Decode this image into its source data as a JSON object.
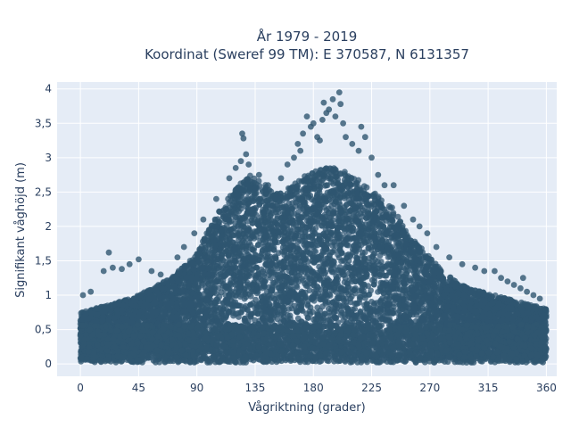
{
  "chart_data": {
    "type": "scatter",
    "title_line1": "År 1979 - 2019",
    "title_line2": "Koordinat (Sweref 99 TM): E 370587, N 6131357",
    "xlabel": "Vågriktning (grader)",
    "ylabel": "Signifikant våghöjd (m)",
    "xlim": [
      -18,
      368
    ],
    "ylim": [
      -0.18,
      4.1
    ],
    "xticks": [
      0,
      45,
      90,
      135,
      180,
      225,
      270,
      315,
      360
    ],
    "xtick_labels": [
      "0",
      "45",
      "90",
      "135",
      "180",
      "225",
      "270",
      "315",
      "360"
    ],
    "yticks": [
      0,
      0.5,
      1,
      1.5,
      2,
      2.5,
      3,
      3.5,
      4
    ],
    "ytick_labels": [
      "0",
      "0,5",
      "1",
      "1,5",
      "2",
      "2,5",
      "3",
      "3,5",
      "4"
    ],
    "grid": true,
    "colors": {
      "marker": "#2f5670",
      "plot_bg": "#e5ecf6",
      "grid": "#ffffff"
    },
    "envelope": {
      "x": [
        0,
        20,
        45,
        70,
        90,
        100,
        110,
        120,
        130,
        140,
        150,
        160,
        170,
        180,
        190,
        200,
        210,
        220,
        230,
        240,
        250,
        260,
        270,
        280,
        290,
        300,
        310,
        320,
        330,
        340,
        350,
        360
      ],
      "y": [
        0.75,
        0.85,
        1.0,
        1.25,
        1.6,
        2.0,
        2.3,
        2.55,
        2.75,
        2.65,
        2.5,
        2.55,
        2.7,
        2.8,
        2.85,
        2.85,
        2.75,
        2.6,
        2.45,
        2.3,
        2.0,
        1.75,
        1.55,
        1.35,
        1.2,
        1.1,
        1.05,
        1.0,
        0.95,
        0.9,
        0.85,
        0.8
      ]
    },
    "outliers": [
      {
        "x": 2,
        "y": 1.0
      },
      {
        "x": 8,
        "y": 1.05
      },
      {
        "x": 22,
        "y": 1.62
      },
      {
        "x": 18,
        "y": 1.35
      },
      {
        "x": 25,
        "y": 1.4
      },
      {
        "x": 32,
        "y": 1.38
      },
      {
        "x": 38,
        "y": 1.45
      },
      {
        "x": 45,
        "y": 1.52
      },
      {
        "x": 55,
        "y": 1.35
      },
      {
        "x": 62,
        "y": 1.3
      },
      {
        "x": 75,
        "y": 1.55
      },
      {
        "x": 80,
        "y": 1.7
      },
      {
        "x": 88,
        "y": 1.9
      },
      {
        "x": 95,
        "y": 2.1
      },
      {
        "x": 105,
        "y": 2.4
      },
      {
        "x": 115,
        "y": 2.7
      },
      {
        "x": 120,
        "y": 2.85
      },
      {
        "x": 124,
        "y": 2.95
      },
      {
        "x": 125,
        "y": 3.35
      },
      {
        "x": 126,
        "y": 3.28
      },
      {
        "x": 128,
        "y": 3.05
      },
      {
        "x": 130,
        "y": 2.9
      },
      {
        "x": 138,
        "y": 2.75
      },
      {
        "x": 145,
        "y": 2.6
      },
      {
        "x": 155,
        "y": 2.7
      },
      {
        "x": 160,
        "y": 2.9
      },
      {
        "x": 165,
        "y": 3.0
      },
      {
        "x": 168,
        "y": 3.2
      },
      {
        "x": 170,
        "y": 3.1
      },
      {
        "x": 172,
        "y": 3.35
      },
      {
        "x": 175,
        "y": 3.6
      },
      {
        "x": 178,
        "y": 3.45
      },
      {
        "x": 180,
        "y": 3.5
      },
      {
        "x": 183,
        "y": 3.3
      },
      {
        "x": 185,
        "y": 3.25
      },
      {
        "x": 187,
        "y": 3.55
      },
      {
        "x": 188,
        "y": 3.8
      },
      {
        "x": 190,
        "y": 3.65
      },
      {
        "x": 192,
        "y": 3.7
      },
      {
        "x": 195,
        "y": 3.85
      },
      {
        "x": 197,
        "y": 3.6
      },
      {
        "x": 200,
        "y": 3.95
      },
      {
        "x": 201,
        "y": 3.78
      },
      {
        "x": 203,
        "y": 3.5
      },
      {
        "x": 205,
        "y": 3.3
      },
      {
        "x": 210,
        "y": 3.2
      },
      {
        "x": 215,
        "y": 3.1
      },
      {
        "x": 217,
        "y": 3.45
      },
      {
        "x": 220,
        "y": 3.3
      },
      {
        "x": 225,
        "y": 3.0
      },
      {
        "x": 230,
        "y": 2.75
      },
      {
        "x": 235,
        "y": 2.6
      },
      {
        "x": 242,
        "y": 2.6
      },
      {
        "x": 250,
        "y": 2.3
      },
      {
        "x": 257,
        "y": 2.1
      },
      {
        "x": 262,
        "y": 2.0
      },
      {
        "x": 268,
        "y": 1.9
      },
      {
        "x": 275,
        "y": 1.7
      },
      {
        "x": 285,
        "y": 1.55
      },
      {
        "x": 295,
        "y": 1.45
      },
      {
        "x": 305,
        "y": 1.4
      },
      {
        "x": 312,
        "y": 1.35
      },
      {
        "x": 320,
        "y": 1.35
      },
      {
        "x": 325,
        "y": 1.25
      },
      {
        "x": 330,
        "y": 1.2
      },
      {
        "x": 335,
        "y": 1.15
      },
      {
        "x": 340,
        "y": 1.1
      },
      {
        "x": 342,
        "y": 1.25
      },
      {
        "x": 345,
        "y": 1.05
      },
      {
        "x": 350,
        "y": 1.0
      },
      {
        "x": 355,
        "y": 0.95
      }
    ]
  }
}
